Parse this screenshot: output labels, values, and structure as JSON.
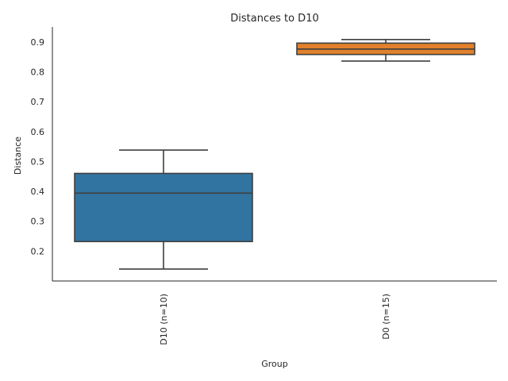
{
  "chart_data": {
    "type": "box",
    "title": "Distances to D10",
    "xlabel": "Group",
    "ylabel": "Distance",
    "ylim": [
      0.1,
      0.95
    ],
    "yticks": [
      0.2,
      0.3,
      0.4,
      0.5,
      0.6,
      0.7,
      0.8,
      0.9
    ],
    "ytick_labels": [
      "0.2",
      "0.3",
      "0.4",
      "0.5",
      "0.6",
      "0.7",
      "0.8",
      "0.9"
    ],
    "grid": false,
    "categories": [
      "D10 (n=10)",
      "D0 (n=15)"
    ],
    "boxes": [
      {
        "category": "D10 (n=10)",
        "whisker_low": 0.14,
        "q1": 0.232,
        "median": 0.394,
        "q3": 0.46,
        "whisker_high": 0.538,
        "color": "#3274a1"
      },
      {
        "category": "D0 (n=15)",
        "whisker_low": 0.836,
        "q1": 0.858,
        "median": 0.876,
        "q3": 0.896,
        "whisker_high": 0.908,
        "color": "#e1812c"
      }
    ],
    "line_color": "#3f3f3f"
  }
}
